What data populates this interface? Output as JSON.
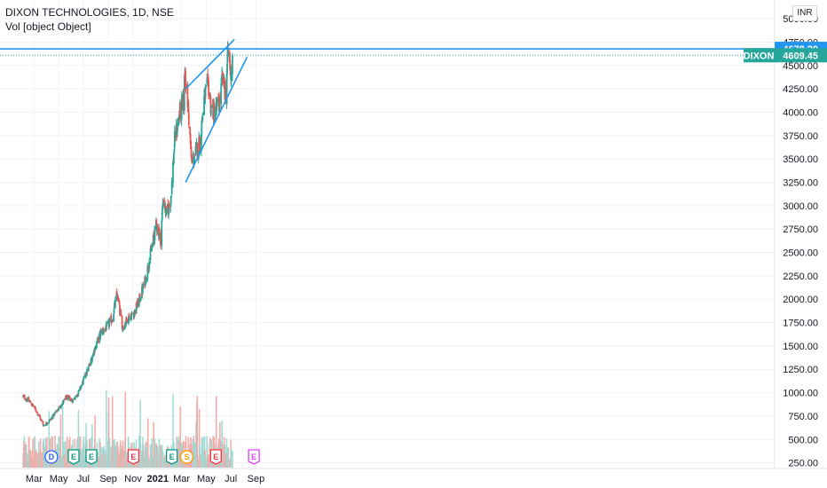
{
  "header": {
    "symbol_line": "DIXON TECHNOLOGIES, 1D, NSE",
    "volume_line": "Vol [object Object]",
    "currency": "INR"
  },
  "colors": {
    "up": "#26a69a",
    "down": "#ef5350",
    "up_volume": "#9fd9d3",
    "down_volume": "#f6a9a7",
    "drawing": "#2196f3",
    "last_price_tag": "#26a69a",
    "resistance_tag": "#2196f3"
  },
  "chart_data": {
    "type": "candlestick",
    "symbol": "DIXON",
    "interval": "1D",
    "exchange": "NSE",
    "y_axis": {
      "ticks": [
        "5000.00",
        "4750.00",
        "4500.00",
        "4250.00",
        "4000.00",
        "3750.00",
        "3500.00",
        "3250.00",
        "3000.00",
        "2750.00",
        "2500.00",
        "2250.00",
        "2000.00",
        "1750.00",
        "1500.00",
        "1250.00",
        "1000.00",
        "750.00",
        "500.00",
        "250.00"
      ],
      "range": [
        150,
        5100
      ]
    },
    "x_axis": {
      "labels": [
        "Mar",
        "May",
        "Jul",
        "Sep",
        "Nov",
        "2021",
        "Mar",
        "May",
        "Jul",
        "Sep"
      ]
    },
    "price_path": [
      [
        "2020-02-03",
        960
      ],
      [
        "2020-02-20",
        900
      ],
      [
        "2020-03-05",
        820
      ],
      [
        "2020-03-12",
        760
      ],
      [
        "2020-03-25",
        650
      ],
      [
        "2020-04-08",
        700
      ],
      [
        "2020-04-22",
        780
      ],
      [
        "2020-05-06",
        860
      ],
      [
        "2020-05-20",
        950
      ],
      [
        "2020-06-05",
        920
      ],
      [
        "2020-06-19",
        1000
      ],
      [
        "2020-07-03",
        1150
      ],
      [
        "2020-07-17",
        1300
      ],
      [
        "2020-07-31",
        1500
      ],
      [
        "2020-08-14",
        1650
      ],
      [
        "2020-08-28",
        1700
      ],
      [
        "2020-09-11",
        1800
      ],
      [
        "2020-09-22",
        2050
      ],
      [
        "2020-10-06",
        1700
      ],
      [
        "2020-10-20",
        1800
      ],
      [
        "2020-11-03",
        1850
      ],
      [
        "2020-11-17",
        2000
      ],
      [
        "2020-12-01",
        2200
      ],
      [
        "2020-12-15",
        2500
      ],
      [
        "2020-12-29",
        2800
      ],
      [
        "2021-01-08",
        2650
      ],
      [
        "2021-01-15",
        3100
      ],
      [
        "2021-01-22",
        2900
      ],
      [
        "2021-02-02",
        3050
      ],
      [
        "2021-02-12",
        3700
      ],
      [
        "2021-02-25",
        4000
      ],
      [
        "2021-03-05",
        4100
      ],
      [
        "2021-03-10",
        4450
      ],
      [
        "2021-03-18",
        4000
      ],
      [
        "2021-03-26",
        3450
      ],
      [
        "2021-04-08",
        3600
      ],
      [
        "2021-04-16",
        3700
      ],
      [
        "2021-04-26",
        4150
      ],
      [
        "2021-05-06",
        4300
      ],
      [
        "2021-05-13",
        4050
      ],
      [
        "2021-05-21",
        4000
      ],
      [
        "2021-06-03",
        4100
      ],
      [
        "2021-06-10",
        4350
      ],
      [
        "2021-06-18",
        4200
      ],
      [
        "2021-06-24",
        4650
      ],
      [
        "2021-07-01",
        4420
      ],
      [
        "2021-07-05",
        4609.45
      ]
    ],
    "volume_scale_note": "volume pane shares the lower portion of the price axis",
    "horizontal_line": {
      "price": 4678.2,
      "label": "4678.20"
    },
    "last_price": {
      "symbol": "DIXON",
      "price": 4609.45,
      "label": "4609.45"
    },
    "trend_lines": [
      {
        "name": "upper",
        "from": [
          "2021-03-11",
          4250
        ],
        "to": [
          "2021-07-10",
          4780
        ]
      },
      {
        "name": "lower",
        "from": [
          "2021-03-11",
          3250
        ],
        "to": [
          "2021-08-10",
          4590
        ]
      }
    ],
    "events": [
      {
        "date": "2020-04-13",
        "letter": "D",
        "shape": "circle",
        "color": "#2962ff"
      },
      {
        "date": "2020-06-07",
        "letter": "E",
        "shape": "pentagon",
        "color": "#089981"
      },
      {
        "date": "2020-07-21",
        "letter": "E",
        "shape": "pentagon",
        "color": "#089981"
      },
      {
        "date": "2020-11-02",
        "letter": "E",
        "shape": "pentagon",
        "color": "#f23645"
      },
      {
        "date": "2021-02-05",
        "letter": "E",
        "shape": "pentagon",
        "color": "#089981"
      },
      {
        "date": "2021-03-14",
        "letter": "S",
        "shape": "circle",
        "color": "#ff9800"
      },
      {
        "date": "2021-05-25",
        "letter": "E",
        "shape": "pentagon",
        "color": "#f23645"
      },
      {
        "date": "2021-08-27",
        "letter": "E",
        "shape": "pentagon",
        "color": "#e040fb"
      }
    ]
  }
}
